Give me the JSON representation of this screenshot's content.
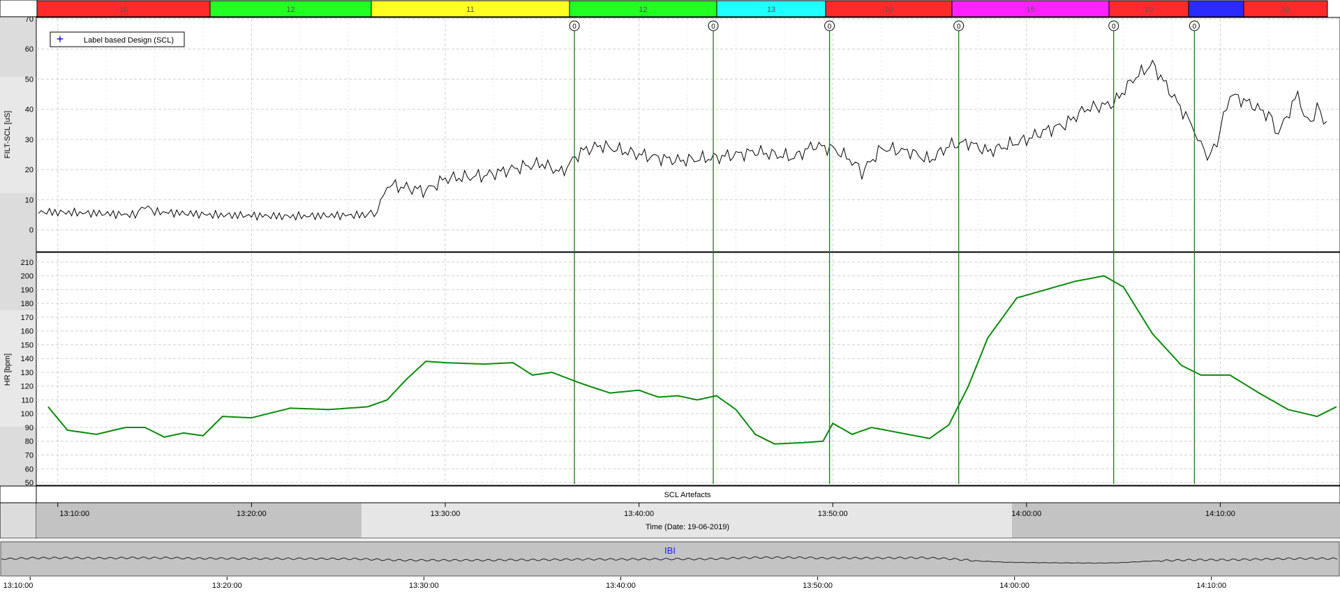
{
  "window": {
    "title": ""
  },
  "condition_bar": {
    "segments": [
      {
        "label": "10",
        "color": "#ff2b2b"
      },
      {
        "label": "12",
        "color": "#22ff22"
      },
      {
        "label": "11",
        "color": "#ffff22"
      },
      {
        "label": "12",
        "color": "#22ff22"
      },
      {
        "label": "13",
        "color": "#22ffff"
      },
      {
        "label": "10",
        "color": "#ff2b2b"
      },
      {
        "label": "15",
        "color": "#ff22ff"
      },
      {
        "label": "10",
        "color": "#ff2b2b"
      },
      {
        "label": "",
        "color": "#2b2bff"
      },
      {
        "label": "10",
        "color": "#ff2b2b"
      }
    ]
  },
  "markers": {
    "label": "0",
    "color": "#1a7a1a"
  },
  "legend": {
    "label": "Label based Design (SCL)",
    "icon": "plus-icon",
    "color": "#0000cc"
  },
  "scl_panel": {
    "ylabel": "FILT-SCL [uS]"
  },
  "hr_panel": {
    "ylabel": "HR [bpm]"
  },
  "artefacts": {
    "label": "SCL Artefacts"
  },
  "time_axis": {
    "xlabel": "Time (Date: 19-06-2019)"
  },
  "ibi": {
    "label": "IBI",
    "label_color": "#2020ff"
  },
  "chart_data": [
    {
      "type": "line",
      "ylabel": "FILT-SCL [uS]",
      "ylim": [
        -7,
        70
      ],
      "yticks": [
        0,
        10,
        20,
        30,
        40,
        50,
        60,
        70
      ],
      "xlim": [
        "13:09:00",
        "14:16:00"
      ],
      "grid": true,
      "legend": "top-left",
      "series": [
        {
          "name": "Label based Design (SCL)",
          "color": "#000000",
          "points": [
            [
              "13:09:00",
              6
            ],
            [
              "13:12:00",
              5.5
            ],
            [
              "13:14:00",
              5
            ],
            [
              "13:14:30",
              8
            ],
            [
              "13:15:00",
              6
            ],
            [
              "13:18:00",
              5
            ],
            [
              "13:22:00",
              4.5
            ],
            [
              "13:26:00",
              5
            ],
            [
              "13:26:30",
              6
            ],
            [
              "13:27:00",
              15
            ],
            [
              "13:28:00",
              14
            ],
            [
              "13:29:00",
              13
            ],
            [
              "13:30:00",
              17
            ],
            [
              "13:32:00",
              18
            ],
            [
              "13:34:00",
              21
            ],
            [
              "13:35:00",
              22
            ],
            [
              "13:36:00",
              19
            ],
            [
              "13:37:00",
              26
            ],
            [
              "13:38:00",
              28
            ],
            [
              "13:40:00",
              25
            ],
            [
              "13:42:00",
              23
            ],
            [
              "13:44:00",
              24
            ],
            [
              "13:46:00",
              26
            ],
            [
              "13:48:00",
              24
            ],
            [
              "13:49:00",
              28
            ],
            [
              "13:50:00",
              27
            ],
            [
              "13:51:00",
              23
            ],
            [
              "13:51:30",
              19
            ],
            [
              "13:52:30",
              27
            ],
            [
              "13:54:00",
              26
            ],
            [
              "13:55:00",
              23
            ],
            [
              "13:56:00",
              28
            ],
            [
              "13:57:00",
              29
            ],
            [
              "13:58:00",
              26
            ],
            [
              "13:59:00",
              28
            ],
            [
              "14:00:00",
              30
            ],
            [
              "14:01:00",
              33
            ],
            [
              "14:02:00",
              35
            ],
            [
              "14:03:00",
              40
            ],
            [
              "14:04:30",
              42
            ],
            [
              "14:05:30",
              50
            ],
            [
              "14:06:30",
              55
            ],
            [
              "14:07:30",
              45
            ],
            [
              "14:08:30",
              35
            ],
            [
              "14:09:00",
              28
            ],
            [
              "14:09:30",
              24
            ],
            [
              "14:10:00",
              33
            ],
            [
              "14:10:30",
              45
            ],
            [
              "14:11:30",
              42
            ],
            [
              "14:12:30",
              38
            ],
            [
              "14:13:00",
              32
            ],
            [
              "14:14:00",
              45
            ],
            [
              "14:14:30",
              35
            ],
            [
              "14:15:00",
              40
            ],
            [
              "14:15:30",
              36
            ]
          ]
        }
      ],
      "event_markers": [
        "13:36:40",
        "13:43:50",
        "13:49:50",
        "13:56:30",
        "14:04:30",
        "14:08:40"
      ]
    },
    {
      "type": "line",
      "ylabel": "HR [bpm]",
      "ylim": [
        49,
        216
      ],
      "yticks": [
        50,
        60,
        70,
        80,
        90,
        100,
        110,
        120,
        130,
        140,
        150,
        160,
        170,
        180,
        190,
        200,
        210
      ],
      "xlim": [
        "13:09:00",
        "14:16:00"
      ],
      "grid": true,
      "series": [
        {
          "name": "",
          "color": "#0a8a0a",
          "points": [
            [
              "13:09:30",
              105
            ],
            [
              "13:10:30",
              88
            ],
            [
              "13:12:00",
              85
            ],
            [
              "13:13:30",
              90
            ],
            [
              "13:14:30",
              90
            ],
            [
              "13:15:30",
              83
            ],
            [
              "13:16:30",
              86
            ],
            [
              "13:17:30",
              84
            ],
            [
              "13:18:30",
              98
            ],
            [
              "13:20:00",
              97
            ],
            [
              "13:22:00",
              104
            ],
            [
              "13:24:00",
              103
            ],
            [
              "13:26:00",
              105
            ],
            [
              "13:27:00",
              110
            ],
            [
              "13:28:00",
              125
            ],
            [
              "13:29:00",
              138
            ],
            [
              "13:30:00",
              137
            ],
            [
              "13:32:00",
              136
            ],
            [
              "13:33:30",
              137
            ],
            [
              "13:34:30",
              128
            ],
            [
              "13:35:30",
              130
            ],
            [
              "13:37:00",
              122
            ],
            [
              "13:38:30",
              115
            ],
            [
              "13:40:00",
              117
            ],
            [
              "13:41:00",
              112
            ],
            [
              "13:42:00",
              113
            ],
            [
              "13:43:00",
              110
            ],
            [
              "13:44:00",
              113
            ],
            [
              "13:45:00",
              103
            ],
            [
              "13:46:00",
              85
            ],
            [
              "13:47:00",
              78
            ],
            [
              "13:48:30",
              79
            ],
            [
              "13:49:30",
              80
            ],
            [
              "13:50:00",
              93
            ],
            [
              "13:51:00",
              85
            ],
            [
              "13:52:00",
              90
            ],
            [
              "13:53:30",
              86
            ],
            [
              "13:55:00",
              82
            ],
            [
              "13:56:00",
              92
            ],
            [
              "13:57:00",
              120
            ],
            [
              "13:58:00",
              155
            ],
            [
              "13:59:30",
              184
            ],
            [
              "14:01:00",
              190
            ],
            [
              "14:02:30",
              196
            ],
            [
              "14:04:00",
              200
            ],
            [
              "14:05:00",
              192
            ],
            [
              "14:06:30",
              158
            ],
            [
              "14:08:00",
              135
            ],
            [
              "14:09:00",
              128
            ],
            [
              "14:10:30",
              128
            ],
            [
              "14:12:00",
              115
            ],
            [
              "14:13:30",
              103
            ],
            [
              "14:15:00",
              98
            ],
            [
              "14:16:00",
              105
            ]
          ]
        }
      ],
      "event_markers": [
        "13:36:40",
        "13:43:50",
        "13:49:50",
        "13:56:30",
        "14:04:30",
        "14:08:40"
      ]
    },
    {
      "type": "line",
      "title": "IBI",
      "series": [
        {
          "name": "IBI",
          "color": "#222222"
        }
      ]
    }
  ],
  "main_ticks": [
    "13:10:00",
    "13:20:00",
    "13:30:00",
    "13:40:00",
    "13:50:00",
    "14:00:00",
    "14:10:00"
  ],
  "overview_ticks": [
    "13:10:00",
    "13:20:00",
    "13:30:00",
    "13:40:00",
    "13:50:00",
    "14:00:00",
    "14:10:00"
  ]
}
